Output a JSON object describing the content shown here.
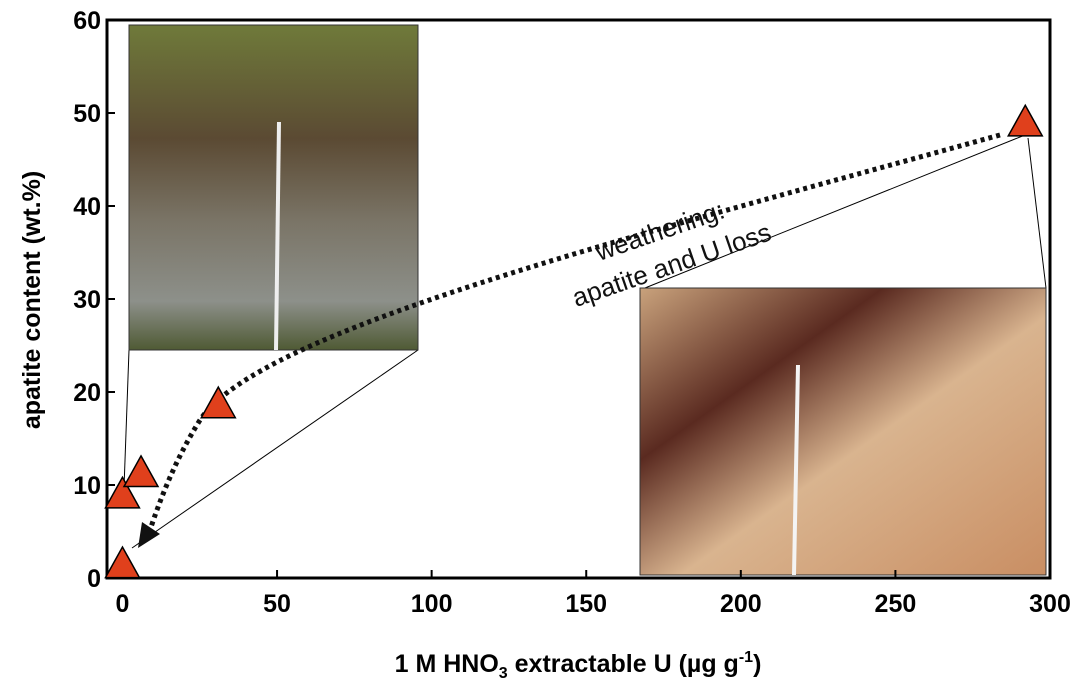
{
  "chart_data": {
    "type": "scatter",
    "xlabel": [
      "1 M HNO",
      "3",
      " extractable U (µg g",
      "-1",
      ")"
    ],
    "ylabel": "apatite content (wt.%)",
    "annotations": [
      "weathering:",
      "apatite and U loss"
    ],
    "series": [
      {
        "name": null,
        "color": "#e0401c",
        "x": [
          0,
          0,
          6,
          31,
          292
        ],
        "values": [
          1.5,
          9,
          11.3,
          18.7,
          49
        ]
      }
    ],
    "xlim": [
      -5,
      300
    ],
    "ylim": [
      0,
      60
    ],
    "xticks": [
      0,
      50,
      100,
      150,
      200,
      250,
      300
    ],
    "yticks": [
      0,
      10,
      20,
      30,
      40,
      50,
      60
    ]
  }
}
